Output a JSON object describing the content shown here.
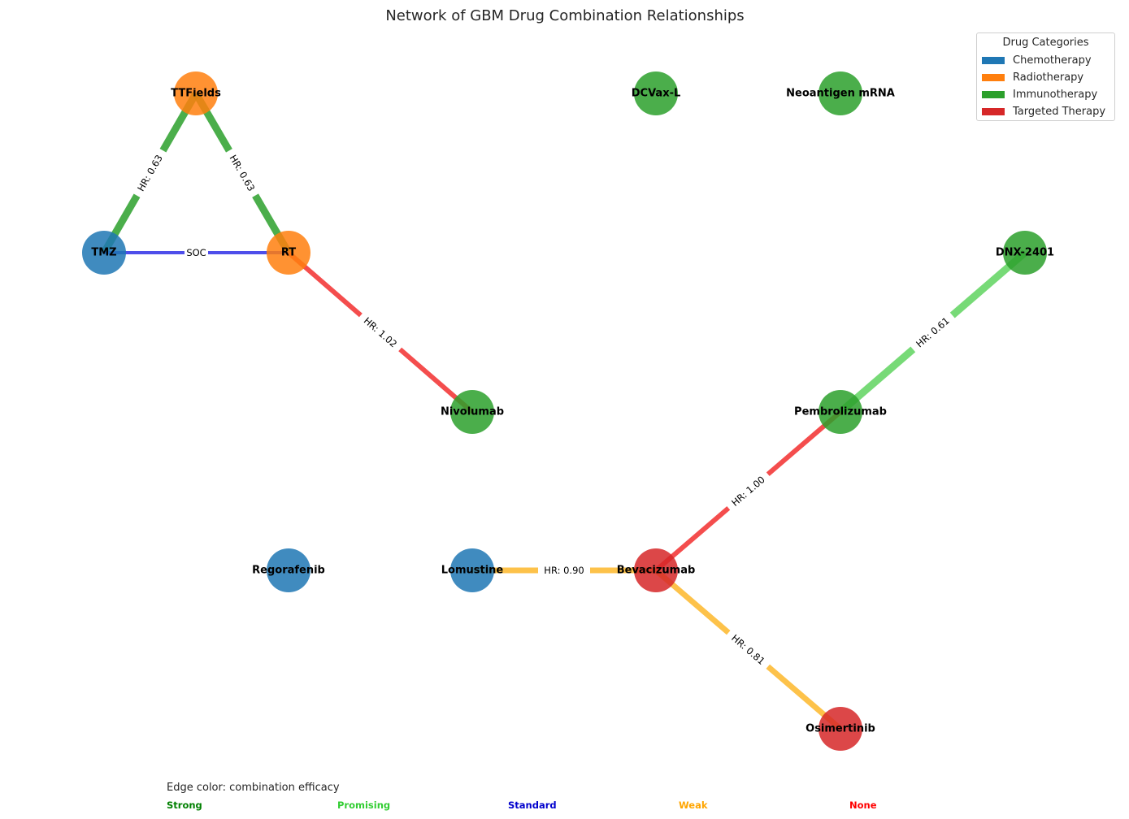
{
  "title": "Network of GBM Drug Combination Relationships",
  "legend": {
    "title": "Drug Categories",
    "items": [
      {
        "label": "Chemotherapy",
        "color": "#1f77b4"
      },
      {
        "label": "Radiotherapy",
        "color": "#ff7f0e"
      },
      {
        "label": "Immunotherapy",
        "color": "#2ca02c"
      },
      {
        "label": "Targeted Therapy",
        "color": "#d62728"
      }
    ]
  },
  "nodes": [
    {
      "id": "TTFields",
      "label": "TTFields",
      "category": "Radiotherapy"
    },
    {
      "id": "DCVax-L",
      "label": "DCVax-L",
      "category": "Immunotherapy"
    },
    {
      "id": "Neoantigen mRNA",
      "label": "Neoantigen mRNA",
      "category": "Immunotherapy"
    },
    {
      "id": "TMZ",
      "label": "TMZ",
      "category": "Chemotherapy"
    },
    {
      "id": "RT",
      "label": "RT",
      "category": "Radiotherapy"
    },
    {
      "id": "DNX-2401",
      "label": "DNX-2401",
      "category": "Immunotherapy"
    },
    {
      "id": "Nivolumab",
      "label": "Nivolumab",
      "category": "Immunotherapy"
    },
    {
      "id": "Pembrolizumab",
      "label": "Pembrolizumab",
      "category": "Immunotherapy"
    },
    {
      "id": "Regorafenib",
      "label": "Regorafenib",
      "category": "Chemotherapy"
    },
    {
      "id": "Lomustine",
      "label": "Lomustine",
      "category": "Chemotherapy"
    },
    {
      "id": "Bevacizumab",
      "label": "Bevacizumab",
      "category": "Targeted Therapy"
    },
    {
      "id": "Osimertinib",
      "label": "Osimertinib",
      "category": "Targeted Therapy"
    }
  ],
  "edges": [
    {
      "source": "TMZ",
      "target": "TTFields",
      "label": "HR: 0.63",
      "efficacy": "Strong"
    },
    {
      "source": "TTFields",
      "target": "RT",
      "label": "HR: 0.63",
      "efficacy": "Strong"
    },
    {
      "source": "TMZ",
      "target": "RT",
      "label": "SOC",
      "efficacy": "Standard"
    },
    {
      "source": "RT",
      "target": "Nivolumab",
      "label": "HR: 1.02",
      "efficacy": "None"
    },
    {
      "source": "Pembrolizumab",
      "target": "DNX-2401",
      "label": "HR: 0.61",
      "efficacy": "Promising"
    },
    {
      "source": "Bevacizumab",
      "target": "Pembrolizumab",
      "label": "HR: 1.00",
      "efficacy": "None"
    },
    {
      "source": "Lomustine",
      "target": "Bevacizumab",
      "label": "HR: 0.90",
      "efficacy": "Weak"
    },
    {
      "source": "Bevacizumab",
      "target": "Osimertinib",
      "label": "HR: 0.81",
      "efficacy": "Weak"
    }
  ],
  "efficacy_colors": {
    "Strong": "#2ca02c",
    "Promising": "#5fd35f",
    "Standard": "#2f2fe6",
    "Weak": "#fdb72a",
    "None": "#f22e2e"
  },
  "footer": {
    "note": "Edge color: combination efficacy",
    "keys": [
      {
        "label": "Strong",
        "color": "#008000"
      },
      {
        "label": "Promising",
        "color": "#32cd32"
      },
      {
        "label": "Standard",
        "color": "#0000cd"
      },
      {
        "label": "Weak",
        "color": "#ffa500"
      },
      {
        "label": "None",
        "color": "#ff0000"
      }
    ]
  }
}
